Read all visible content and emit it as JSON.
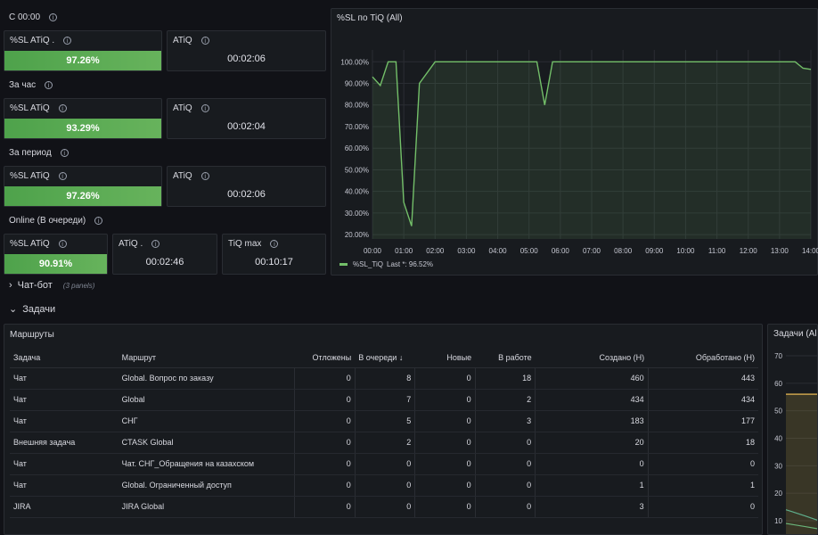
{
  "rows": {
    "today": "С 00:00",
    "hour": "За час",
    "period": "За период",
    "online": "Online (В очереди)"
  },
  "stats": {
    "today_sl": {
      "title": "%SL ATiQ .",
      "value": "97.26%"
    },
    "today_atiq": {
      "title": "ATiQ",
      "value": "00:02:06"
    },
    "hour_sl": {
      "title": "%SL ATiQ",
      "value": "93.29%"
    },
    "hour_atiq": {
      "title": "ATiQ",
      "value": "00:02:04"
    },
    "period_sl": {
      "title": "%SL ATiQ",
      "value": "97.26%"
    },
    "period_atiq": {
      "title": "ATiQ",
      "value": "00:02:06"
    },
    "online_sl": {
      "title": "%SL ATiQ",
      "value": "90.91%"
    },
    "online_atiq": {
      "title": "ATiQ .",
      "value": "00:02:46"
    },
    "online_tiq_max": {
      "title": "TiQ max",
      "value": "00:10:17"
    }
  },
  "sections": {
    "chatbot": {
      "label": "Чат-бот",
      "sub": "(3 panels)"
    },
    "tasks": {
      "label": "Задачи"
    }
  },
  "routes_panel": {
    "title": "Маршруты",
    "columns": [
      "Задача",
      "Маршрут",
      "Отложены",
      "В очереди",
      "Новые",
      "В работе",
      "Создано (Н)",
      "Обработано (Н)"
    ],
    "sort_indicator": "↓",
    "rows": [
      [
        "Чат",
        "Global. Вопрос по заказу",
        "0",
        "8",
        "0",
        "18",
        "460",
        "443"
      ],
      [
        "Чат",
        "Global",
        "0",
        "7",
        "0",
        "2",
        "434",
        "434"
      ],
      [
        "Чат",
        "СНГ",
        "0",
        "5",
        "0",
        "3",
        "183",
        "177"
      ],
      [
        "Внешняя задача",
        "CTASK Global",
        "0",
        "2",
        "0",
        "0",
        "20",
        "18"
      ],
      [
        "Чат",
        "Чат. СНГ_Обращения на казахском",
        "0",
        "0",
        "0",
        "0",
        "0",
        "0"
      ],
      [
        "Чат",
        "Global. Ограниченный доступ",
        "0",
        "0",
        "0",
        "0",
        "1",
        "1"
      ],
      [
        "JIRA",
        "JIRA Global",
        "0",
        "0",
        "0",
        "0",
        "3",
        "0"
      ]
    ]
  },
  "tasks_panel": {
    "title": "Задачи (All)",
    "y_ticks": [
      "70",
      "60",
      "50",
      "40",
      "30",
      "20",
      "10"
    ]
  },
  "chart_data": {
    "type": "area",
    "title": "%SL по TiQ (All)",
    "x": [
      "00:00",
      "00:15",
      "00:30",
      "00:45",
      "01:00",
      "01:15",
      "01:30",
      "02:00",
      "03:00",
      "04:00",
      "05:00",
      "05:15",
      "05:30",
      "05:45",
      "06:00",
      "07:00",
      "08:00",
      "09:00",
      "10:00",
      "11:00",
      "12:00",
      "13:00",
      "13:30",
      "13:45",
      "14:00"
    ],
    "x_ticks": [
      "00:00",
      "01:00",
      "02:00",
      "03:00",
      "04:00",
      "05:00",
      "06:00",
      "07:00",
      "08:00",
      "09:00",
      "10:00",
      "11:00",
      "12:00",
      "13:00",
      "14:00"
    ],
    "y_ticks": [
      "100.00%",
      "90.00%",
      "80.00%",
      "70.00%",
      "60.00%",
      "50.00%",
      "40.00%",
      "30.00%",
      "20.00%"
    ],
    "ylim": [
      18,
      103
    ],
    "series": [
      {
        "name": "%SL_TiQ",
        "color": "#73bf69",
        "last_label": "Last *: 96.52%",
        "values": [
          93,
          89,
          100,
          100,
          35,
          24,
          90,
          100,
          100,
          100,
          100,
          100,
          80,
          100,
          100,
          100,
          100,
          100,
          100,
          100,
          100,
          100,
          100,
          97,
          96.5
        ]
      }
    ],
    "legend_placement": "bottom-left",
    "grid": true
  }
}
